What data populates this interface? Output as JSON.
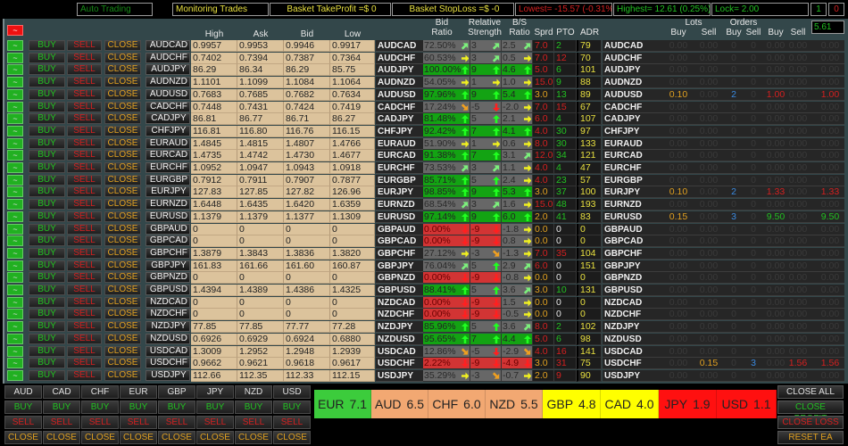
{
  "topbar": {
    "auto_trading": "Auto Trading",
    "monitoring": "Monitoring Trades",
    "basket_tp": "Basket TakeProfit =$ 0",
    "basket_sl": "Basket StopLoss =$ -0",
    "lowest": "Lowest= -15.57 (-0.31%)",
    "highest": "Highest= 12.61 (0.25%)",
    "lock": "Lock= 2.00",
    "count1": "1",
    "count0": "0"
  },
  "header": {
    "toggle_all": "~",
    "high": "High",
    "ask": "Ask",
    "bid": "Bid",
    "low": "Low",
    "bid_ratio": "Bid\nRatio",
    "rel_strength": "Relative\nStrength",
    "bs_ratio": "B/S\nRatio",
    "sprd": "Sprd",
    "pto": "PTO",
    "adr": "ADR",
    "lots": "Lots",
    "orders": "Orders",
    "lots_buy": "Buy",
    "lots_sell": "Sell",
    "orders_buy": "Buy",
    "orders_sell": "Sell",
    "profit_buy": "Buy",
    "profit_sell": "Sell",
    "input_value": "5.61"
  },
  "row_buttons": {
    "toggle": "~",
    "buy": "BUY",
    "sell": "SELL",
    "close": "CLOSE"
  },
  "colors": {
    "buy": "#22c022",
    "sell": "#d42020",
    "close": "#e0a020",
    "up": "#20ff20",
    "up_right": "#7cf07c",
    "right": "#f0f020",
    "down_right": "#f0a020",
    "down": "#ff2020",
    "loss": "#d42020",
    "profit": "#22c022",
    "lots": "#e0a020",
    "orders": "#3a8ae0"
  },
  "rows": [
    {
      "symbol": "AUDCAD",
      "high": "0.9957",
      "ask": "0.9953",
      "bid": "0.9946",
      "low": "0.9917",
      "bid_ratio": "72.50%",
      "br_dir": "up_right",
      "rs": "3",
      "rs_dir": "up_right",
      "bs": "2.5",
      "bs_dir": "up_right",
      "sprd": "7.0",
      "pto": "2",
      "pto_color": "green",
      "adr": "79",
      "trades": [
        "0.00",
        "0.00",
        "0",
        "0",
        "0.00",
        "0.00",
        "0.00"
      ]
    },
    {
      "symbol": "AUDCHF",
      "high": "0.7402",
      "ask": "0.7394",
      "bid": "0.7387",
      "low": "0.7364",
      "bid_ratio": "60.53%",
      "br_dir": "right",
      "rs": "3",
      "rs_dir": "up_right",
      "bs": "0.5",
      "bs_dir": "right",
      "sprd": "7.0",
      "pto": "12",
      "pto_color": "red",
      "adr": "70",
      "trades": [
        "0.00",
        "0.00",
        "0",
        "0",
        "0.00",
        "0.00",
        "0.00"
      ]
    },
    {
      "symbol": "AUDJPY",
      "high": "86.29",
      "ask": "86.34",
      "bid": "86.29",
      "low": "85.75",
      "bid_ratio": "100.00%",
      "br_dir": "up",
      "rs": "9",
      "rs_dir": "up",
      "bs": "4.6",
      "bs_dir": "up",
      "sprd": "5.0",
      "pto": "6",
      "pto_color": "green",
      "adr": "101",
      "trades": [
        "0.00",
        "0.00",
        "0",
        "0",
        "0.00",
        "0.00",
        "0.00"
      ]
    },
    {
      "symbol": "AUDNZD",
      "high": "1.1101",
      "ask": "1.1099",
      "bid": "1.1084",
      "low": "1.1064",
      "bid_ratio": "54.05%",
      "br_dir": "right",
      "rs": "1",
      "rs_dir": "right",
      "bs": "1.0",
      "bs_dir": "right",
      "sprd": "15.0",
      "pto": "9",
      "pto_color": "green",
      "adr": "88",
      "trades": [
        "0.00",
        "0.00",
        "0",
        "0",
        "0.00",
        "0.00",
        "0.00"
      ]
    },
    {
      "symbol": "AUDUSD",
      "high": "0.7683",
      "ask": "0.7685",
      "bid": "0.7682",
      "low": "0.7634",
      "bid_ratio": "97.96%",
      "br_dir": "up",
      "rs": "9",
      "rs_dir": "up",
      "bs": "5.4",
      "bs_dir": "up",
      "sprd": "3.0",
      "pto": "13",
      "pto_color": "green",
      "adr": "89",
      "pl": "loss",
      "trades": [
        "0.10",
        "0.00",
        "2",
        "0",
        "1.00",
        "0.00",
        "1.00"
      ]
    },
    {
      "symbol": "CADCHF",
      "high": "0.7448",
      "ask": "0.7431",
      "bid": "0.7424",
      "low": "0.7419",
      "bid_ratio": "17.24%",
      "br_dir": "down_right",
      "rs": "-5",
      "rs_dir": "down",
      "bs": "-2.0",
      "bs_dir": "right",
      "sprd": "7.0",
      "pto": "15",
      "pto_color": "red",
      "adr": "67",
      "trades": [
        "0.00",
        "0.00",
        "0",
        "0",
        "0.00",
        "0.00",
        "0.00"
      ]
    },
    {
      "symbol": "CADJPY",
      "high": "86.81",
      "ask": "86.77",
      "bid": "86.71",
      "low": "86.27",
      "bid_ratio": "81.48%",
      "br_dir": "up",
      "rs": "5",
      "rs_dir": "up",
      "bs": "2.1",
      "bs_dir": "right",
      "sprd": "6.0",
      "pto": "4",
      "pto_color": "green",
      "adr": "107",
      "trades": [
        "0.00",
        "0.00",
        "0",
        "0",
        "0.00",
        "0.00",
        "0.00"
      ]
    },
    {
      "symbol": "CHFJPY",
      "high": "116.81",
      "ask": "116.80",
      "bid": "116.76",
      "low": "116.15",
      "bid_ratio": "92.42%",
      "br_dir": "up",
      "rs": "7",
      "rs_dir": "up",
      "bs": "4.1",
      "bs_dir": "up",
      "sprd": "4.0",
      "pto": "30",
      "pto_color": "green",
      "adr": "97",
      "trades": [
        "0.00",
        "0.00",
        "0",
        "0",
        "0.00",
        "0.00",
        "0.00"
      ]
    },
    {
      "symbol": "EURAUD",
      "high": "1.4845",
      "ask": "1.4815",
      "bid": "1.4807",
      "low": "1.4766",
      "bid_ratio": "51.90%",
      "br_dir": "right",
      "rs": "1",
      "rs_dir": "right",
      "bs": "0.6",
      "bs_dir": "right",
      "sprd": "8.0",
      "pto": "30",
      "pto_color": "green",
      "adr": "133",
      "trades": [
        "0.00",
        "0.00",
        "0",
        "0",
        "0.00",
        "0.00",
        "0.00"
      ]
    },
    {
      "symbol": "EURCAD",
      "high": "1.4735",
      "ask": "1.4742",
      "bid": "1.4730",
      "low": "1.4677",
      "bid_ratio": "91.38%",
      "br_dir": "up",
      "rs": "7",
      "rs_dir": "up",
      "bs": "3.1",
      "bs_dir": "up_right",
      "sprd": "12.0",
      "pto": "34",
      "pto_color": "green",
      "adr": "121",
      "trades": [
        "0.00",
        "0.00",
        "0",
        "0",
        "0.00",
        "0.00",
        "0.00"
      ]
    },
    {
      "symbol": "EURCHF",
      "high": "1.0952",
      "ask": "1.0947",
      "bid": "1.0943",
      "low": "1.0918",
      "bid_ratio": "73.53%",
      "br_dir": "up_right",
      "rs": "3",
      "rs_dir": "up_right",
      "bs": "1.1",
      "bs_dir": "right",
      "sprd": "4.0",
      "pto": "4",
      "pto_color": "green",
      "adr": "47",
      "trades": [
        "0.00",
        "0.00",
        "0",
        "0",
        "0.00",
        "0.00",
        "0.00"
      ]
    },
    {
      "symbol": "EURGBP",
      "high": "0.7912",
      "ask": "0.7911",
      "bid": "0.7907",
      "low": "0.7877",
      "bid_ratio": "85.71%",
      "br_dir": "up",
      "rs": "5",
      "rs_dir": "up",
      "bs": "2.4",
      "bs_dir": "right",
      "sprd": "4.0",
      "pto": "23",
      "pto_color": "green",
      "adr": "57",
      "trades": [
        "0.00",
        "0.00",
        "0",
        "0",
        "0.00",
        "0.00",
        "0.00"
      ]
    },
    {
      "symbol": "EURJPY",
      "high": "127.83",
      "ask": "127.85",
      "bid": "127.82",
      "low": "126.96",
      "bid_ratio": "98.85%",
      "br_dir": "up",
      "rs": "9",
      "rs_dir": "up",
      "bs": "5.3",
      "bs_dir": "up",
      "sprd": "3.0",
      "pto": "37",
      "pto_color": "green",
      "adr": "100",
      "pl": "loss",
      "trades": [
        "0.10",
        "0.00",
        "2",
        "0",
        "1.33",
        "0.00",
        "1.33"
      ]
    },
    {
      "symbol": "EURNZD",
      "high": "1.6448",
      "ask": "1.6435",
      "bid": "1.6420",
      "low": "1.6359",
      "bid_ratio": "68.54%",
      "br_dir": "up_right",
      "rs": "3",
      "rs_dir": "up_right",
      "bs": "1.6",
      "bs_dir": "right",
      "sprd": "15.0",
      "pto": "48",
      "pto_color": "green",
      "adr": "193",
      "trades": [
        "0.00",
        "0.00",
        "0",
        "0",
        "0.00",
        "0.00",
        "0.00"
      ]
    },
    {
      "symbol": "EURUSD",
      "high": "1.1379",
      "ask": "1.1379",
      "bid": "1.1377",
      "low": "1.1309",
      "bid_ratio": "97.14%",
      "br_dir": "up",
      "rs": "9",
      "rs_dir": "up",
      "bs": "6.0",
      "bs_dir": "up",
      "sprd": "2.0",
      "pto": "41",
      "pto_color": "green",
      "adr": "83",
      "pl": "profit",
      "trades": [
        "0.15",
        "0.00",
        "3",
        "0",
        "9.50",
        "0.00",
        "9.50"
      ]
    },
    {
      "symbol": "GBPAUD",
      "high": "0",
      "ask": "0",
      "bid": "0",
      "low": "0",
      "bid_ratio": "0.00%",
      "br_dir": "down",
      "rs": "-9",
      "rs_dir": "down",
      "bs": "-1.8",
      "bs_dir": "right",
      "sprd": "0.0",
      "pto": "0",
      "pto_color": "white",
      "adr": "0",
      "trades": [
        "0.00",
        "0.00",
        "0",
        "0",
        "0.00",
        "0.00",
        "0.00"
      ]
    },
    {
      "symbol": "GBPCAD",
      "high": "0",
      "ask": "0",
      "bid": "0",
      "low": "0",
      "bid_ratio": "0.00%",
      "br_dir": "down",
      "rs": "-9",
      "rs_dir": "down",
      "bs": "0.8",
      "bs_dir": "right",
      "sprd": "0.0",
      "pto": "0",
      "pto_color": "white",
      "adr": "0",
      "trades": [
        "0.00",
        "0.00",
        "0",
        "0",
        "0.00",
        "0.00",
        "0.00"
      ]
    },
    {
      "symbol": "GBPCHF",
      "high": "1.3879",
      "ask": "1.3843",
      "bid": "1.3836",
      "low": "1.3820",
      "bid_ratio": "27.12%",
      "br_dir": "right",
      "rs": "-3",
      "rs_dir": "down_right",
      "bs": "-1.3",
      "bs_dir": "right",
      "sprd": "7.0",
      "pto": "35",
      "pto_color": "red",
      "adr": "104",
      "trades": [
        "0.00",
        "0.00",
        "0",
        "0",
        "0.00",
        "0.00",
        "0.00"
      ]
    },
    {
      "symbol": "GBPJPY",
      "high": "161.83",
      "ask": "161.66",
      "bid": "161.60",
      "low": "160.87",
      "bid_ratio": "76.04%",
      "br_dir": "up_right",
      "rs": "5",
      "rs_dir": "up",
      "bs": "2.9",
      "bs_dir": "up_right",
      "sprd": "6.0",
      "pto": "0",
      "pto_color": "white",
      "adr": "151",
      "trades": [
        "0.00",
        "0.00",
        "0",
        "0",
        "0.00",
        "0.00",
        "0.00"
      ]
    },
    {
      "symbol": "GBPNZD",
      "high": "0",
      "ask": "0",
      "bid": "0",
      "low": "0",
      "bid_ratio": "0.00%",
      "br_dir": "down",
      "rs": "-9",
      "rs_dir": "down",
      "bs": "-0.8",
      "bs_dir": "right",
      "sprd": "0.0",
      "pto": "0",
      "pto_color": "white",
      "adr": "0",
      "trades": [
        "0.00",
        "0.00",
        "0",
        "0",
        "0.00",
        "0.00",
        "0.00"
      ]
    },
    {
      "symbol": "GBPUSD",
      "high": "1.4394",
      "ask": "1.4389",
      "bid": "1.4386",
      "low": "1.4325",
      "bid_ratio": "88.41%",
      "br_dir": "up",
      "rs": "5",
      "rs_dir": "up",
      "bs": "3.6",
      "bs_dir": "up_right",
      "sprd": "3.0",
      "pto": "10",
      "pto_color": "green",
      "adr": "131",
      "trades": [
        "0.00",
        "0.00",
        "0",
        "0",
        "0.00",
        "0.00",
        "0.00"
      ]
    },
    {
      "symbol": "NZDCAD",
      "high": "0",
      "ask": "0",
      "bid": "0",
      "low": "0",
      "bid_ratio": "0.00%",
      "br_dir": "down",
      "rs": "-9",
      "rs_dir": "down",
      "bs": "1.5",
      "bs_dir": "right",
      "sprd": "0.0",
      "pto": "0",
      "pto_color": "white",
      "adr": "0",
      "trades": [
        "0.00",
        "0.00",
        "0",
        "0",
        "0.00",
        "0.00",
        "0.00"
      ]
    },
    {
      "symbol": "NZDCHF",
      "high": "0",
      "ask": "0",
      "bid": "0",
      "low": "0",
      "bid_ratio": "0.00%",
      "br_dir": "down",
      "rs": "-9",
      "rs_dir": "down",
      "bs": "-0.5",
      "bs_dir": "right",
      "sprd": "0.0",
      "pto": "0",
      "pto_color": "white",
      "adr": "0",
      "trades": [
        "0.00",
        "0.00",
        "0",
        "0",
        "0.00",
        "0.00",
        "0.00"
      ]
    },
    {
      "symbol": "NZDJPY",
      "high": "77.85",
      "ask": "77.85",
      "bid": "77.77",
      "low": "77.28",
      "bid_ratio": "85.96%",
      "br_dir": "up",
      "rs": "5",
      "rs_dir": "up",
      "bs": "3.6",
      "bs_dir": "up_right",
      "sprd": "8.0",
      "pto": "2",
      "pto_color": "green",
      "adr": "102",
      "trades": [
        "0.00",
        "0.00",
        "0",
        "0",
        "0.00",
        "0.00",
        "0.00"
      ]
    },
    {
      "symbol": "NZDUSD",
      "high": "0.6926",
      "ask": "0.6929",
      "bid": "0.6924",
      "low": "0.6880",
      "bid_ratio": "95.65%",
      "br_dir": "up",
      "rs": "7",
      "rs_dir": "up",
      "bs": "4.4",
      "bs_dir": "up",
      "sprd": "5.0",
      "pto": "6",
      "pto_color": "green",
      "adr": "98",
      "trades": [
        "0.00",
        "0.00",
        "0",
        "0",
        "0.00",
        "0.00",
        "0.00"
      ]
    },
    {
      "symbol": "USDCAD",
      "high": "1.3009",
      "ask": "1.2952",
      "bid": "1.2948",
      "low": "1.2939",
      "bid_ratio": "12.86%",
      "br_dir": "down_right",
      "rs": "-5",
      "rs_dir": "down",
      "bs": "-2.9",
      "bs_dir": "down_right",
      "sprd": "4.0",
      "pto": "16",
      "pto_color": "red",
      "adr": "141",
      "trades": [
        "0.00",
        "0.00",
        "0",
        "0",
        "0.00",
        "0.00",
        "0.00"
      ]
    },
    {
      "symbol": "USDCHF",
      "high": "0.9662",
      "ask": "0.9621",
      "bid": "0.9618",
      "low": "0.9617",
      "bid_ratio": "2.22%",
      "br_dir": "down",
      "rs": "-9",
      "rs_dir": "down",
      "bs": "-4.9",
      "bs_dir": "down",
      "sprd": "3.0",
      "pto": "31",
      "pto_color": "red",
      "adr": "75",
      "pl": "loss",
      "trades": [
        "0.00",
        "0.15",
        "0",
        "3",
        "0.00",
        "1.56",
        "1.56"
      ]
    },
    {
      "symbol": "USDJPY",
      "high": "112.66",
      "ask": "112.35",
      "bid": "112.33",
      "low": "112.15",
      "bid_ratio": "35.29%",
      "br_dir": "right",
      "rs": "-3",
      "rs_dir": "down_right",
      "bs": "-0.7",
      "bs_dir": "right",
      "sprd": "2.0",
      "pto": "9",
      "pto_color": "red",
      "adr": "90",
      "trades": [
        "0.00",
        "0.00",
        "0",
        "0",
        "0.00",
        "0.00",
        "0.00"
      ]
    }
  ],
  "currency_panel": {
    "currencies": [
      "AUD",
      "CAD",
      "CHF",
      "EUR",
      "GBP",
      "JPY",
      "NZD",
      "USD"
    ],
    "buy": "BUY",
    "sell": "SELL",
    "close": "CLOSE"
  },
  "strength": [
    {
      "currency": "EUR",
      "value": "7.1",
      "color": "#3ccc3c"
    },
    {
      "currency": "AUD",
      "value": "6.5",
      "color": "#f2a872"
    },
    {
      "currency": "CHF",
      "value": "6.0",
      "color": "#f2a872"
    },
    {
      "currency": "NZD",
      "value": "5.5",
      "color": "#f2a872"
    },
    {
      "currency": "GBP",
      "value": "4.8",
      "color": "#ffff00"
    },
    {
      "currency": "CAD",
      "value": "4.0",
      "color": "#ffff00"
    },
    {
      "currency": "JPY",
      "value": "1.9",
      "color": "#ff1010"
    },
    {
      "currency": "USD",
      "value": "1.1",
      "color": "#ff1010"
    }
  ],
  "actions": {
    "close_all": "CLOSE ALL",
    "close_profit": "CLOSE PROFIT",
    "close_loss": "CLOSE LOSS",
    "reset_ea": "RESET EA"
  }
}
